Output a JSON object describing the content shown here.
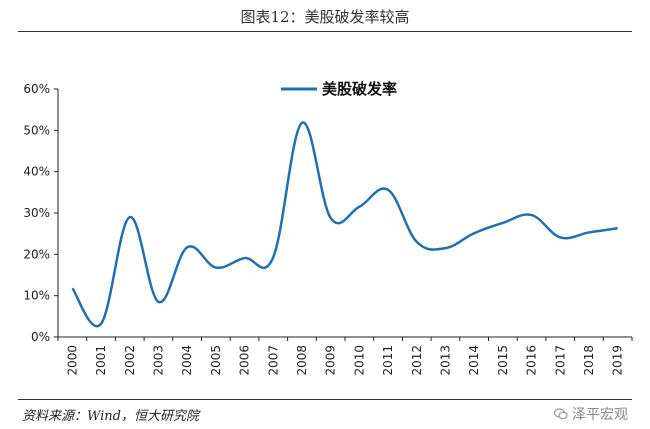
{
  "figure_title": "图表12：美股破发率较高",
  "source_note": "资料来源：Wind，恒大研究院",
  "watermark": "泽平宏观",
  "chart_data": {
    "type": "line",
    "title": "",
    "xlabel": "",
    "ylabel": "",
    "x": [
      "2000",
      "2001",
      "2002",
      "2003",
      "2004",
      "2005",
      "2006",
      "2007",
      "2008",
      "2009",
      "2010",
      "2011",
      "2012",
      "2013",
      "2014",
      "2015",
      "2016",
      "2017",
      "2018",
      "2019"
    ],
    "y_ticks": [
      "0%",
      "10%",
      "20%",
      "30%",
      "40%",
      "50%",
      "60%"
    ],
    "ylim": [
      0,
      60
    ],
    "series": [
      {
        "name": "美股破发率",
        "color": "#1f6fb4",
        "values": [
          11.8,
          3.2,
          29.0,
          8.5,
          21.7,
          16.8,
          19.1,
          19.3,
          51.8,
          28.8,
          31.5,
          35.6,
          23.0,
          21.5,
          25.1,
          27.6,
          29.5,
          24.1,
          25.3,
          26.3
        ]
      }
    ],
    "legend": "top-center",
    "grid": false
  }
}
